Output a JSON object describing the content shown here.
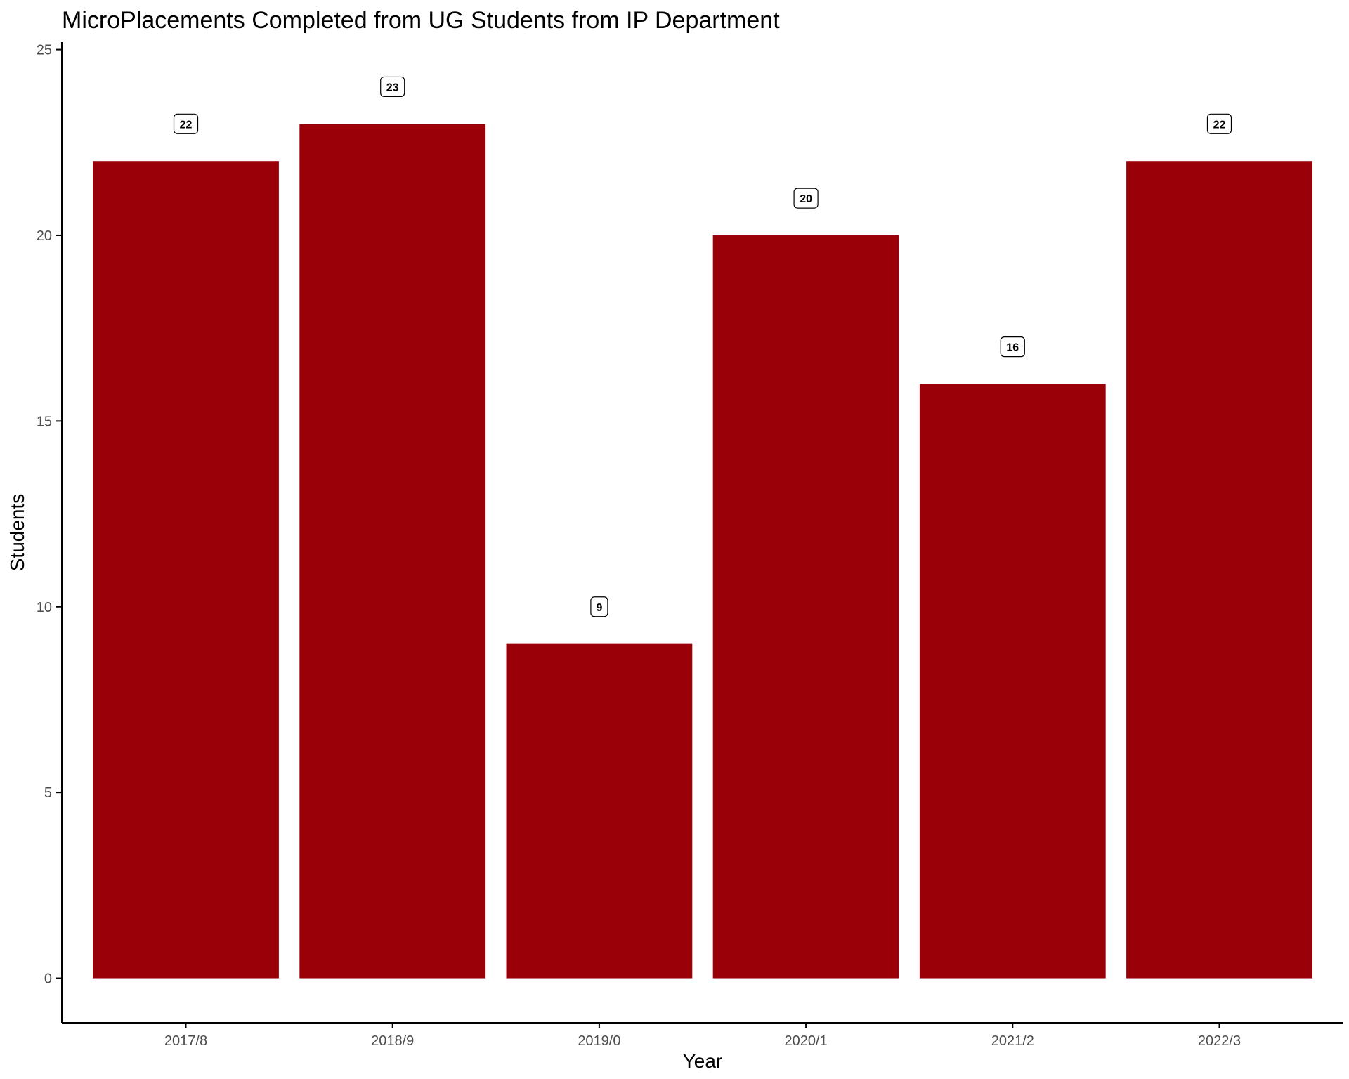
{
  "chart_data": {
    "type": "bar",
    "title": "MicroPlacements Completed from UG Students from IP Department",
    "xlabel": "Year",
    "ylabel": "Students",
    "categories": [
      "2017/8",
      "2018/9",
      "2019/0",
      "2020/1",
      "2021/2",
      "2022/3"
    ],
    "values": [
      22,
      23,
      9,
      20,
      16,
      22
    ],
    "ylim": [
      -1.2,
      25.2
    ],
    "yticks": [
      0,
      5,
      10,
      15,
      20,
      25
    ],
    "grid": false,
    "legend": "none",
    "bar_color": "#990008",
    "data_labels": [
      "22",
      "23",
      "9",
      "20",
      "16",
      "22"
    ]
  }
}
